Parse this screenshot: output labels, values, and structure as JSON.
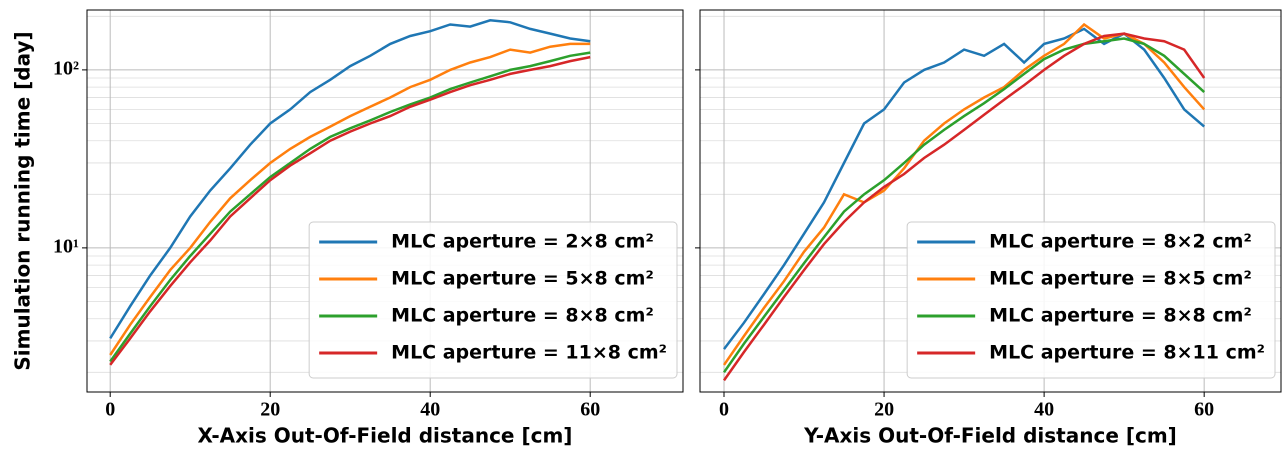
{
  "chart_data": [
    {
      "type": "line",
      "xlabel": "X-Axis Out-Of-Field distance [cm]",
      "ylabel": "Simulation running time [day]",
      "x": [
        0,
        2.5,
        5,
        7.5,
        10,
        12.5,
        15,
        17.5,
        20,
        22.5,
        25,
        27.5,
        30,
        32.5,
        35,
        37.5,
        40,
        42.5,
        45,
        47.5,
        50,
        52.5,
        55,
        57.5,
        60
      ],
      "series": [
        {
          "name": "MLC aperture = 2×8 cm²",
          "color": "#1f77b4",
          "values": [
            3.1,
            4.7,
            7,
            10,
            15,
            21,
            28,
            38,
            50,
            60,
            75,
            88,
            105,
            120,
            140,
            155,
            165,
            180,
            175,
            190,
            185,
            170,
            160,
            150,
            145
          ]
        },
        {
          "name": "MLC aperture = 5×8 cm²",
          "color": "#ff7f0e",
          "values": [
            2.5,
            3.7,
            5.3,
            7.5,
            10,
            14,
            19,
            24,
            30,
            36,
            42,
            48,
            55,
            62,
            70,
            80,
            88,
            100,
            110,
            118,
            130,
            125,
            135,
            140,
            140
          ]
        },
        {
          "name": "MLC aperture = 8×8 cm²",
          "color": "#2ca02c",
          "values": [
            2.3,
            3.3,
            4.7,
            6.6,
            9,
            12,
            16,
            20,
            25,
            30,
            36,
            42,
            47,
            52,
            58,
            64,
            70,
            78,
            85,
            92,
            100,
            105,
            112,
            120,
            125
          ]
        },
        {
          "name": "MLC aperture = 11×8 cm²",
          "color": "#d62728",
          "values": [
            2.2,
            3.1,
            4.4,
            6.1,
            8.3,
            11,
            15,
            19,
            24,
            29,
            34,
            40,
            45,
            50,
            55,
            62,
            68,
            75,
            82,
            88,
            95,
            100,
            105,
            112,
            118
          ]
        }
      ],
      "xlim": [
        -2.9,
        71.6
      ],
      "xticks": [
        0,
        20,
        40,
        60
      ],
      "ylim": [
        1.55,
        217
      ],
      "yticks": [
        {
          "value": 10,
          "label": "10¹"
        },
        {
          "value": 100,
          "label": "10²"
        }
      ],
      "yminorticks": [
        2,
        3,
        4,
        5,
        6,
        7,
        8,
        9,
        20,
        30,
        40,
        50,
        60,
        70,
        80,
        90,
        200
      ],
      "log_y": true,
      "grid": true,
      "legend": "lower right"
    },
    {
      "type": "line",
      "xlabel": "Y-Axis Out-Of-Field distance [cm]",
      "x": [
        0,
        2.5,
        5,
        7.5,
        10,
        12.5,
        15,
        17.5,
        20,
        22.5,
        25,
        27.5,
        30,
        32.5,
        35,
        37.5,
        40,
        42.5,
        45,
        47.5,
        50,
        52.5,
        55,
        57.5,
        60
      ],
      "series": [
        {
          "name": "MLC aperture = 8×2 cm²",
          "color": "#1f77b4",
          "values": [
            2.7,
            3.8,
            5.5,
            8,
            12,
            18,
            30,
            50,
            60,
            85,
            100,
            110,
            130,
            120,
            140,
            110,
            140,
            150,
            170,
            140,
            160,
            130,
            90,
            60,
            48
          ]
        },
        {
          "name": "MLC aperture = 8×5 cm²",
          "color": "#ff7f0e",
          "values": [
            2.2,
            3.2,
            4.6,
            6.5,
            9.5,
            13,
            20,
            18,
            21,
            28,
            40,
            50,
            60,
            70,
            80,
            100,
            120,
            140,
            180,
            150,
            160,
            140,
            110,
            80,
            60
          ]
        },
        {
          "name": "MLC aperture = 8×8 cm²",
          "color": "#2ca02c",
          "values": [
            2.0,
            2.9,
            4.1,
            5.8,
            8.2,
            11.5,
            16,
            20,
            24,
            30,
            38,
            46,
            55,
            65,
            78,
            95,
            115,
            130,
            140,
            145,
            150,
            140,
            120,
            95,
            75
          ]
        },
        {
          "name": "MLC aperture = 8×11 cm²",
          "color": "#d62728",
          "values": [
            1.8,
            2.6,
            3.7,
            5.3,
            7.5,
            10.5,
            14,
            18,
            22,
            26,
            32,
            38,
            46,
            56,
            68,
            82,
            100,
            120,
            140,
            155,
            160,
            150,
            145,
            130,
            90
          ]
        }
      ],
      "xlim": [
        -3,
        69.6
      ],
      "xticks": [
        0,
        20,
        40,
        60
      ],
      "ylim": [
        1.55,
        217
      ],
      "yticks": [
        {
          "value": 10
        },
        {
          "value": 100
        }
      ],
      "yminorticks": [
        2,
        3,
        4,
        5,
        6,
        7,
        8,
        9,
        20,
        30,
        40,
        50,
        60,
        70,
        80,
        90,
        200
      ],
      "log_y": true,
      "grid": true,
      "legend": "lower right"
    }
  ]
}
